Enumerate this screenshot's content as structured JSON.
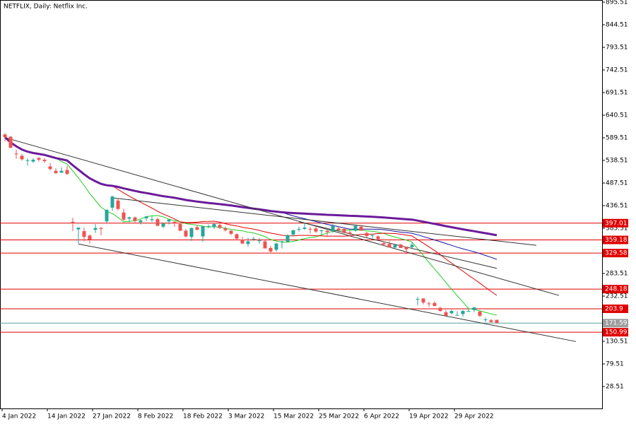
{
  "chart_data": {
    "type": "candlestick",
    "title": "NETFLIX, Daily:  Netflix Inc.",
    "categories": [
      "4 Jan 2022",
      null,
      null,
      null,
      null,
      null,
      null,
      null,
      "14 Jan 2022",
      null,
      null,
      null,
      null,
      null,
      null,
      null,
      "27 Jan 2022",
      null,
      null,
      null,
      null,
      null,
      null,
      null,
      "8 Feb 2022",
      null,
      null,
      null,
      null,
      null,
      null,
      null,
      "18 Feb 2022",
      null,
      null,
      null,
      null,
      null,
      null,
      null,
      "3 Mar 2022",
      null,
      null,
      null,
      null,
      null,
      null,
      null,
      "15 Mar 2022",
      null,
      null,
      null,
      null,
      null,
      null,
      null,
      "25 Mar 2022",
      null,
      null,
      null,
      null,
      null,
      null,
      null,
      "6 Apr 2022",
      null,
      null,
      null,
      null,
      null,
      null,
      null,
      "19 Apr 2022",
      null,
      null,
      null,
      null,
      null,
      null,
      null,
      "29 Apr 2022",
      null,
      null,
      null,
      null,
      null,
      null,
      null
    ],
    "open": [
      597,
      592,
      554,
      549,
      538,
      536,
      544,
      540,
      525,
      515,
      511,
      517,
      400,
      383,
      379,
      369,
      382,
      386,
      401,
      432,
      448,
      421,
      407,
      410,
      399,
      408,
      404,
      406,
      389,
      401,
      400,
      395,
      380,
      366,
      388,
      367,
      390,
      388,
      393,
      385,
      380,
      372,
      360,
      350,
      361,
      358,
      356,
      341,
      337,
      355,
      355,
      371,
      384,
      384,
      384,
      385,
      379,
      380,
      379,
      385,
      384,
      376,
      380,
      389,
      375,
      369,
      367,
      352,
      350,
      342,
      349,
      344,
      343,
      225,
      227,
      216,
      217,
      206,
      196,
      194,
      189,
      192,
      199,
      201,
      198,
      180,
      178,
      179
    ],
    "high": [
      600,
      593,
      563,
      553,
      543,
      543,
      546,
      543,
      533,
      521,
      523,
      526,
      409,
      387,
      387,
      372,
      395,
      388,
      428,
      459,
      452,
      430,
      412,
      412,
      405,
      413,
      413,
      409,
      398,
      406,
      401,
      398,
      384,
      387,
      393,
      392,
      394,
      396,
      396,
      389,
      381,
      374,
      366,
      364,
      366,
      363,
      359,
      346,
      353,
      357,
      372,
      382,
      389,
      397,
      389,
      390,
      382,
      381,
      395,
      389,
      387,
      381,
      392,
      393,
      377,
      372,
      370,
      355,
      357,
      349,
      350,
      344,
      353,
      231,
      228,
      220,
      221,
      208,
      201,
      202,
      198,
      201,
      206,
      208,
      198,
      184,
      181,
      179
    ],
    "low": [
      581,
      566,
      542,
      538,
      527,
      533,
      536,
      533,
      516,
      508,
      510,
      506,
      379,
      351,
      356,
      351,
      375,
      370,
      398,
      425,
      426,
      402,
      399,
      396,
      394,
      402,
      400,
      390,
      386,
      394,
      388,
      379,
      365,
      357,
      381,
      355,
      386,
      384,
      384,
      378,
      370,
      359,
      350,
      344,
      357,
      350,
      340,
      331,
      333,
      340,
      354,
      367,
      378,
      382,
      374,
      375,
      370,
      366,
      375,
      380,
      374,
      368,
      378,
      380,
      365,
      363,
      360,
      345,
      342,
      339,
      341,
      327,
      338,
      212,
      214,
      208,
      210,
      197,
      188,
      191,
      189,
      186,
      197,
      196,
      185,
      174,
      172,
      171
    ],
    "close": [
      591,
      567,
      553,
      541,
      539,
      540,
      540,
      537,
      519,
      510,
      515,
      508,
      397,
      387,
      366,
      360,
      386,
      384,
      427,
      457,
      429,
      405,
      410,
      402,
      403,
      412,
      406,
      391,
      396,
      405,
      397,
      380,
      367,
      386,
      382,
      390,
      390,
      395,
      386,
      381,
      373,
      362,
      351,
      356,
      362,
      358,
      340,
      333,
      351,
      356,
      370,
      381,
      384,
      387,
      383,
      378,
      381,
      377,
      391,
      381,
      375,
      373,
      391,
      380,
      368,
      370,
      361,
      349,
      342,
      348,
      341,
      338,
      348,
      226,
      218,
      215,
      210,
      199,
      188,
      199,
      190,
      199,
      199,
      207,
      188,
      180,
      174,
      172
    ],
    "colors": {
      "up": "#26a69a",
      "down": "#ef5350"
    },
    "ylim": [
      -20.9,
      900.29
    ],
    "yticks": [
      895.51,
      844.51,
      793.51,
      742.51,
      691.51,
      640.51,
      589.51,
      538.51,
      487.51,
      436.51,
      385.51,
      283.51,
      232.51,
      130.51,
      79.51,
      28.51
    ],
    "levels": [
      {
        "value": 397.01,
        "color": "#e00000"
      },
      {
        "value": 359.18,
        "color": "#e00000"
      },
      {
        "value": 329.58,
        "color": "#e00000"
      },
      {
        "value": 248.18,
        "color": "#e00000"
      },
      {
        "value": 203.9,
        "color": "#e00000"
      },
      {
        "value": 171.59,
        "color": "#5f9ea0",
        "label_color": "#9e9e9e"
      },
      {
        "value": 150.99,
        "color": "#e00000"
      }
    ],
    "moving_averages": [
      {
        "period": 10,
        "color": "#22cc22",
        "width": 1
      },
      {
        "period": 20,
        "color": "#e00000",
        "width": 1
      },
      {
        "period": 50,
        "color": "#1010a0",
        "width": 1
      },
      {
        "period": 100,
        "color": "#6a1b9a",
        "width": 3
      }
    ],
    "trendlines": [
      {
        "x": [
          0,
          98
        ],
        "y": [
          590,
          234
        ],
        "color": "#333333"
      },
      {
        "x": [
          13,
          101
        ],
        "y": [
          350,
          130
        ],
        "color": "#333333"
      },
      {
        "x": [
          19,
          94
        ],
        "y": [
          454,
          347
        ],
        "color": "#333333"
      },
      {
        "x": [
          52,
          87
        ],
        "y": [
          400,
          295
        ],
        "color": "#333333"
      }
    ]
  }
}
